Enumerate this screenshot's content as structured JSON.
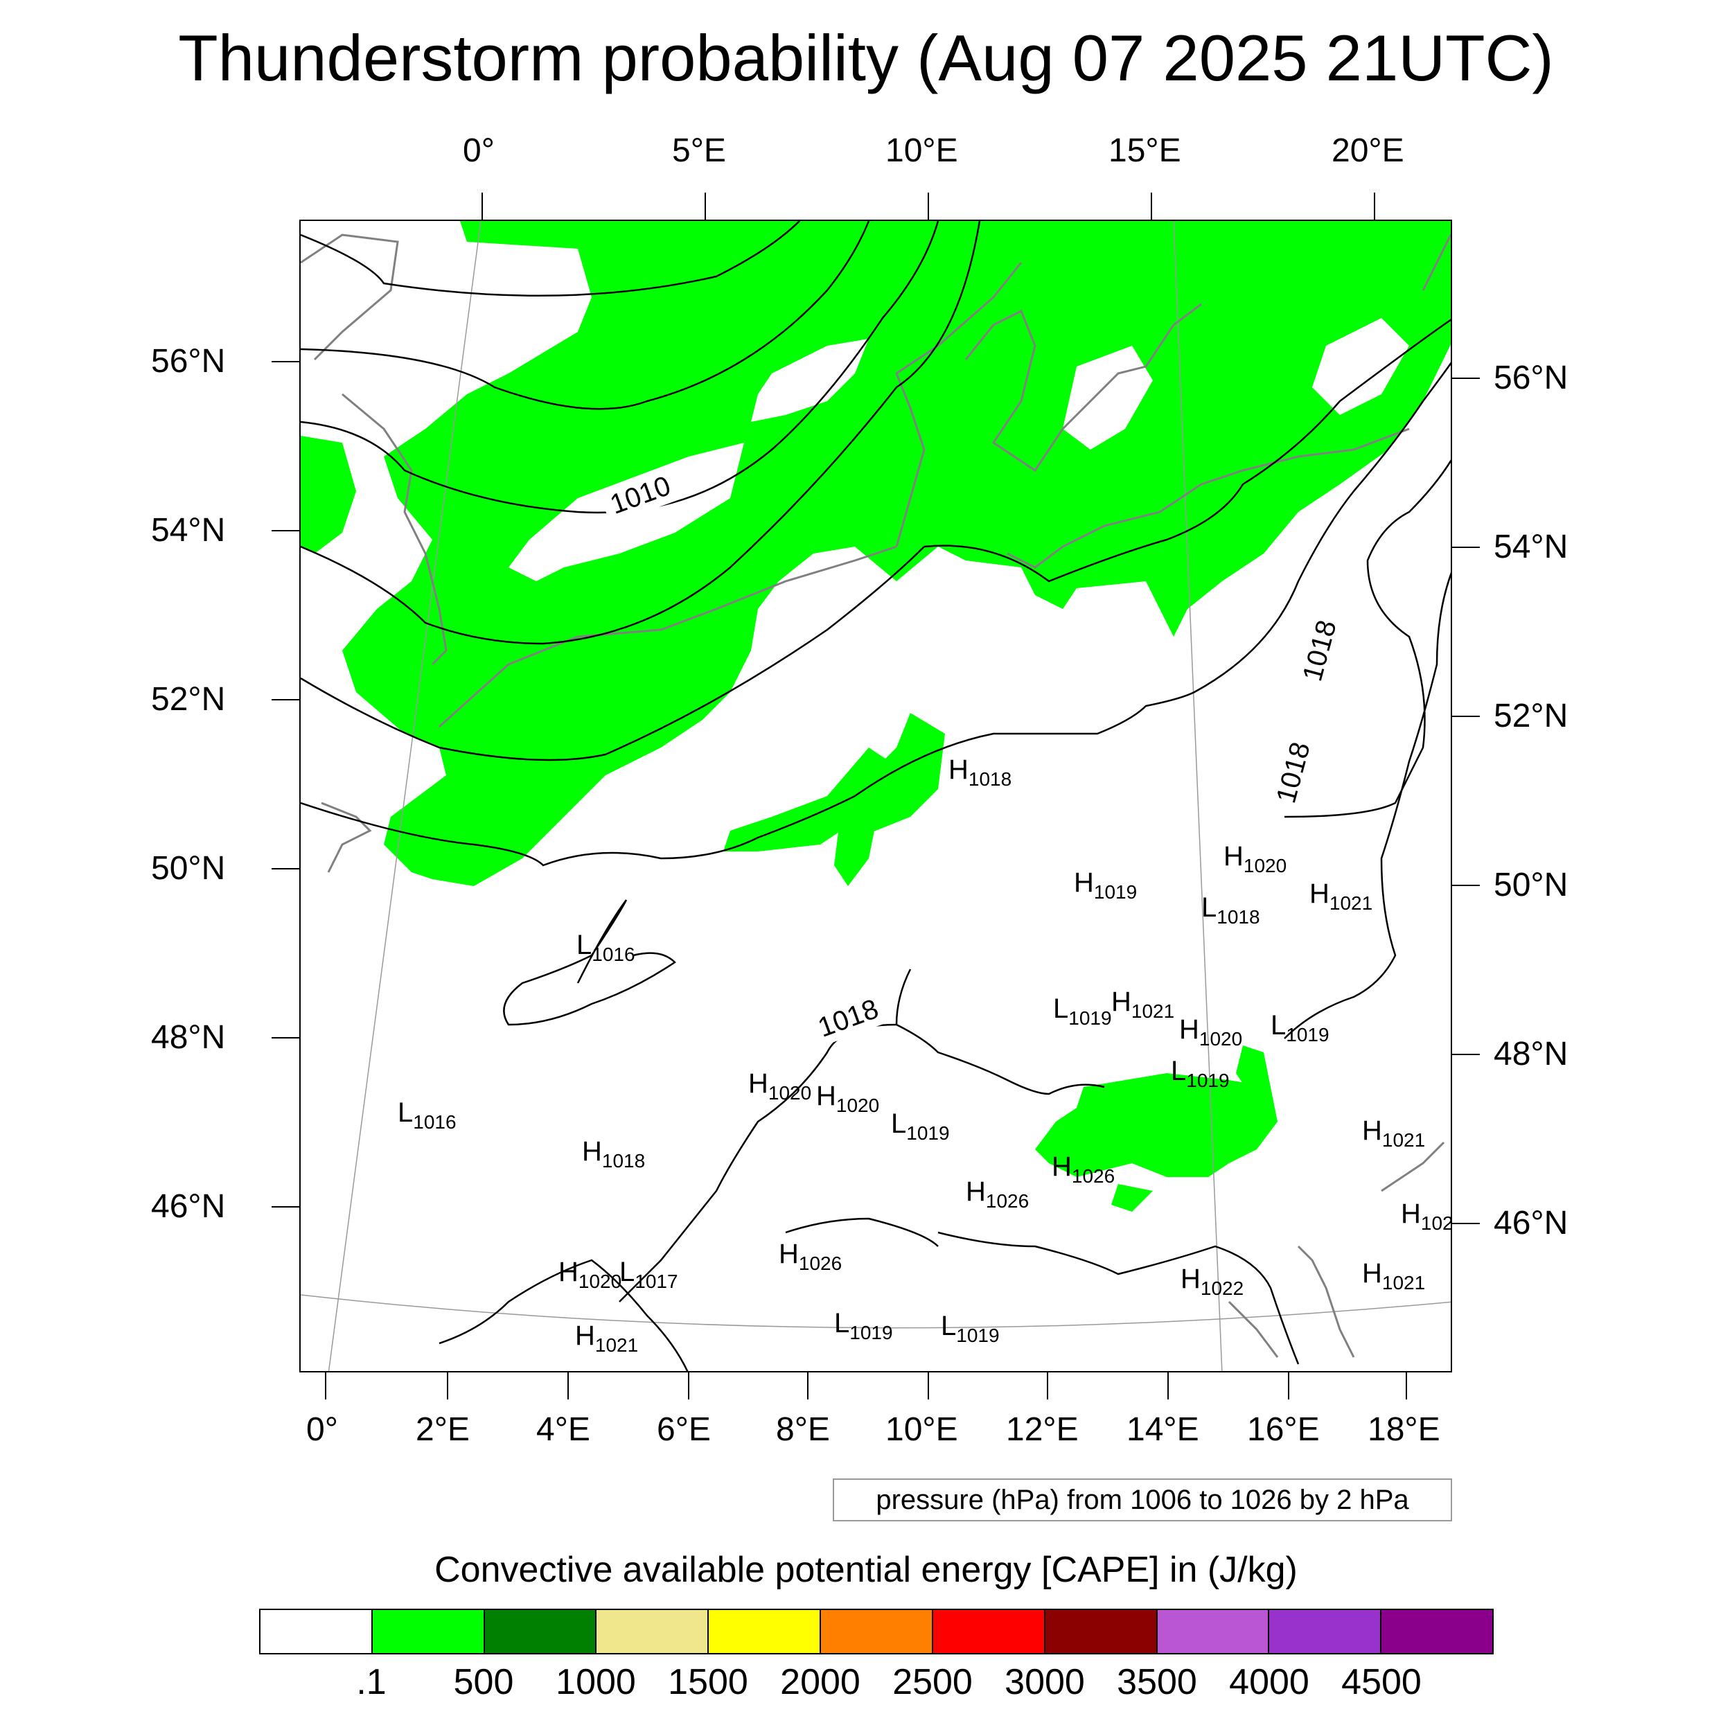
{
  "title": "Thunderstorm probability (Aug 07 2025 21UTC)",
  "top_axis_labels": [
    "0°",
    "5°E",
    "10°E",
    "15°E",
    "20°E"
  ],
  "bottom_axis_labels": [
    "0°",
    "2°E",
    "4°E",
    "6°E",
    "8°E",
    "10°E",
    "12°E",
    "14°E",
    "16°E",
    "18°E"
  ],
  "left_axis_labels": [
    "56°N",
    "54°N",
    "52°N",
    "50°N",
    "48°N",
    "46°N"
  ],
  "right_axis_labels": [
    "56°N",
    "54°N",
    "52°N",
    "50°N",
    "48°N",
    "46°N"
  ],
  "pressure_note": "pressure (hPa) from 1006 to 1026 by 2 hPa",
  "colorbar": {
    "title": "Convective available potential energy [CAPE] in (J/kg)",
    "colors": [
      "#ffffff",
      "#00ff00",
      "#008000",
      "#f0e68c",
      "#ffff00",
      "#ff8000",
      "#ff0000",
      "#8b0000",
      "#ba55d3",
      "#9932cc",
      "#8b008b"
    ],
    "labels": [
      ".1",
      "500",
      "1000",
      "1500",
      "2000",
      "2500",
      "3000",
      "3500",
      "4000",
      "4500"
    ]
  },
  "map": {
    "fill_color": "#00ff00",
    "isobar_labels": [
      "1010",
      "1018",
      "1018",
      "1018"
    ],
    "pressure_centers": [
      {
        "letter": "H",
        "value": "1018"
      },
      {
        "letter": "H",
        "value": "1020"
      },
      {
        "letter": "H",
        "value": "1019"
      },
      {
        "letter": "L",
        "value": "1018"
      },
      {
        "letter": "H",
        "value": "1021"
      },
      {
        "letter": "L",
        "value": "1016"
      },
      {
        "letter": "L",
        "value": "1019"
      },
      {
        "letter": "H",
        "value": "1021"
      },
      {
        "letter": "H",
        "value": "1020"
      },
      {
        "letter": "L",
        "value": "1019"
      },
      {
        "letter": "L",
        "value": "1019"
      },
      {
        "letter": "H",
        "value": "1020"
      },
      {
        "letter": "H",
        "value": "1020"
      },
      {
        "letter": "L",
        "value": "1016"
      },
      {
        "letter": "H",
        "value": "1018"
      },
      {
        "letter": "L",
        "value": "1019"
      },
      {
        "letter": "H",
        "value": "1026"
      },
      {
        "letter": "H",
        "value": "1026"
      },
      {
        "letter": "H",
        "value": "1021"
      },
      {
        "letter": "H",
        "value": "1020"
      },
      {
        "letter": "L",
        "value": "1017"
      },
      {
        "letter": "H",
        "value": "1026"
      },
      {
        "letter": "H",
        "value": "1022"
      },
      {
        "letter": "H",
        "value": "1021"
      },
      {
        "letter": "L",
        "value": "1019"
      },
      {
        "letter": "L",
        "value": "1019"
      },
      {
        "letter": "H",
        "value": "1021"
      },
      {
        "letter": "H",
        "value": "102"
      }
    ]
  }
}
